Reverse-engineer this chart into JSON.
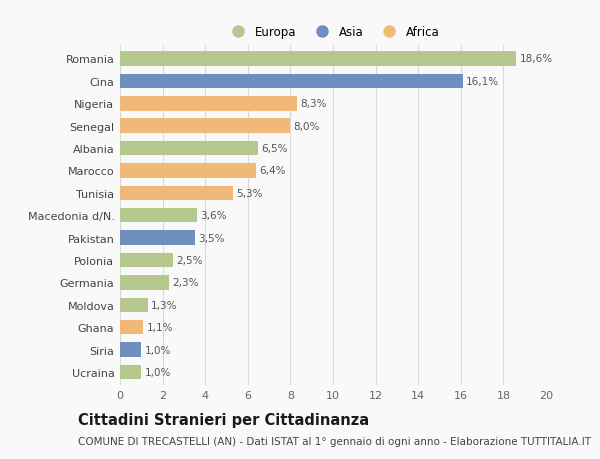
{
  "countries": [
    "Romania",
    "Cina",
    "Nigeria",
    "Senegal",
    "Albania",
    "Marocco",
    "Tunisia",
    "Macedonia d/N.",
    "Pakistan",
    "Polonia",
    "Germania",
    "Moldova",
    "Ghana",
    "Siria",
    "Ucraina"
  ],
  "values": [
    18.6,
    16.1,
    8.3,
    8.0,
    6.5,
    6.4,
    5.3,
    3.6,
    3.5,
    2.5,
    2.3,
    1.3,
    1.1,
    1.0,
    1.0
  ],
  "labels": [
    "18,6%",
    "16,1%",
    "8,3%",
    "8,0%",
    "6,5%",
    "6,4%",
    "5,3%",
    "3,6%",
    "3,5%",
    "2,5%",
    "2,3%",
    "1,3%",
    "1,1%",
    "1,0%",
    "1,0%"
  ],
  "continent": [
    "Europa",
    "Asia",
    "Africa",
    "Africa",
    "Europa",
    "Africa",
    "Africa",
    "Europa",
    "Asia",
    "Europa",
    "Europa",
    "Europa",
    "Africa",
    "Asia",
    "Europa"
  ],
  "colors": {
    "Europa": "#b5c98e",
    "Asia": "#6f8fbf",
    "Africa": "#f0b97a"
  },
  "xlim": [
    0,
    20
  ],
  "xticks": [
    0,
    2,
    4,
    6,
    8,
    10,
    12,
    14,
    16,
    18,
    20
  ],
  "title": "Cittadini Stranieri per Cittadinanza",
  "subtitle": "COMUNE DI TRECASTELLI (AN) - Dati ISTAT al 1° gennaio di ogni anno - Elaborazione TUTTITALIA.IT",
  "background_color": "#f9f9f9",
  "grid_color": "#d8d8d8",
  "bar_height": 0.65,
  "label_fontsize": 7.5,
  "ytick_fontsize": 8.0,
  "xtick_fontsize": 8.0,
  "title_fontsize": 10.5,
  "subtitle_fontsize": 7.5
}
